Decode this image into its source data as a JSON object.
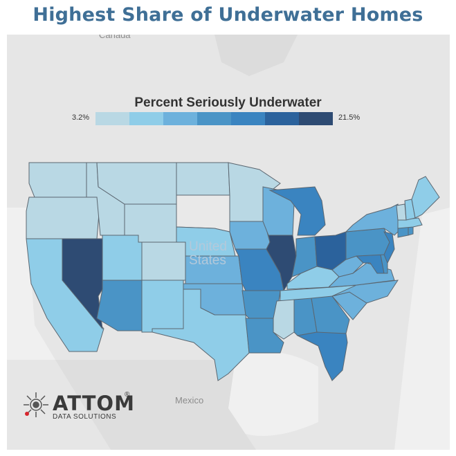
{
  "title": "Highest Share of Underwater Homes",
  "legend": {
    "title": "Percent Seriously Underwater",
    "min_label": "3.2%",
    "max_label": "21.5%",
    "colors": [
      "#b9d8e4",
      "#8fcde8",
      "#6db1dc",
      "#4a94c6",
      "#3a84c0",
      "#2b629c",
      "#2e4b73"
    ]
  },
  "map_labels": {
    "canada": "Canada",
    "united_states": "United\nStates",
    "mexico": "Mexico"
  },
  "logo": {
    "name": "ATTOM",
    "tagline": "DATA SOLUTIONS",
    "reg": "®"
  },
  "colors": {
    "title": "#3f6f96",
    "land": "#e6e6e6",
    "no_data": "#e9e9e9"
  },
  "states": [
    {
      "name": "Washington",
      "level": 1
    },
    {
      "name": "Oregon",
      "level": 1
    },
    {
      "name": "California",
      "level": 2
    },
    {
      "name": "Nevada",
      "level": 7
    },
    {
      "name": "Idaho",
      "level": 1
    },
    {
      "name": "Montana",
      "level": 1
    },
    {
      "name": "Wyoming",
      "level": 1
    },
    {
      "name": "Utah",
      "level": 2
    },
    {
      "name": "Arizona",
      "level": 4
    },
    {
      "name": "Colorado",
      "level": 1
    },
    {
      "name": "New Mexico",
      "level": 2
    },
    {
      "name": "North Dakota",
      "level": 1
    },
    {
      "name": "South Dakota",
      "level": 0
    },
    {
      "name": "Nebraska",
      "level": 2
    },
    {
      "name": "Kansas",
      "level": 3
    },
    {
      "name": "Oklahoma",
      "level": 3
    },
    {
      "name": "Texas",
      "level": 2
    },
    {
      "name": "Minnesota",
      "level": 1
    },
    {
      "name": "Iowa",
      "level": 3
    },
    {
      "name": "Missouri",
      "level": 5
    },
    {
      "name": "Arkansas",
      "level": 4
    },
    {
      "name": "Louisiana",
      "level": 4
    },
    {
      "name": "Wisconsin",
      "level": 3
    },
    {
      "name": "Illinois",
      "level": 7
    },
    {
      "name": "Michigan",
      "level": 5
    },
    {
      "name": "Indiana",
      "level": 4
    },
    {
      "name": "Ohio",
      "level": 6
    },
    {
      "name": "Kentucky",
      "level": 2
    },
    {
      "name": "Tennessee",
      "level": 2
    },
    {
      "name": "Mississippi",
      "level": 1
    },
    {
      "name": "Alabama",
      "level": 4
    },
    {
      "name": "Georgia",
      "level": 4
    },
    {
      "name": "Florida",
      "level": 5
    },
    {
      "name": "South Carolina",
      "level": 3
    },
    {
      "name": "North Carolina",
      "level": 3
    },
    {
      "name": "Virginia",
      "level": 3
    },
    {
      "name": "West Virginia",
      "level": 3
    },
    {
      "name": "Maryland",
      "level": 5
    },
    {
      "name": "Delaware",
      "level": 4
    },
    {
      "name": "Pennsylvania",
      "level": 4
    },
    {
      "name": "New Jersey",
      "level": 5
    },
    {
      "name": "New York",
      "level": 3
    },
    {
      "name": "Connecticut",
      "level": 4
    },
    {
      "name": "Rhode Island",
      "level": 4
    },
    {
      "name": "Massachusetts",
      "level": 2
    },
    {
      "name": "Vermont",
      "level": 1
    },
    {
      "name": "New Hampshire",
      "level": 2
    },
    {
      "name": "Maine",
      "level": 2
    }
  ]
}
